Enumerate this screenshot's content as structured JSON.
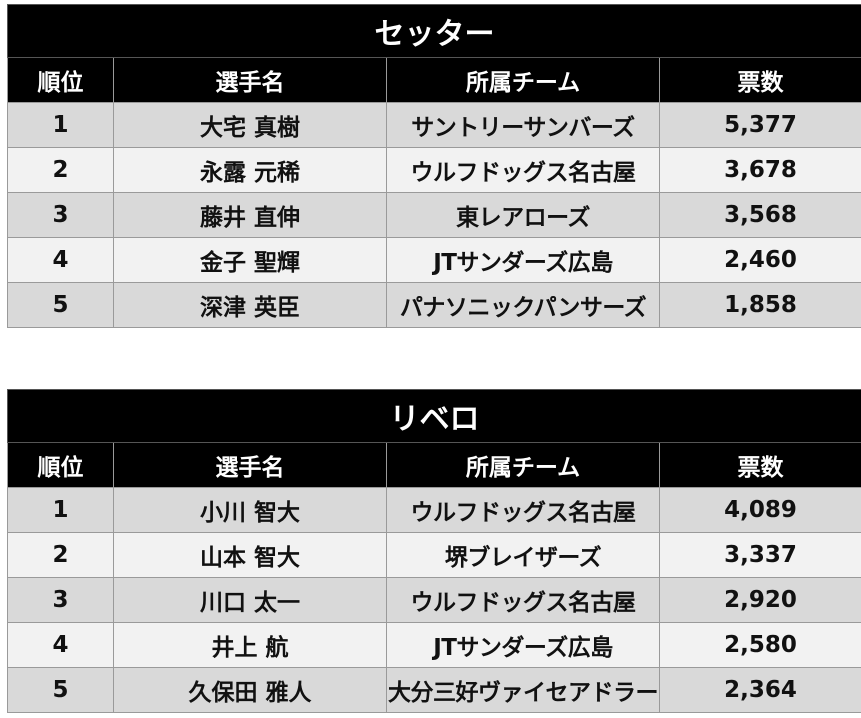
{
  "tables": [
    {
      "title": "セッター",
      "headers": {
        "rank": "順位",
        "player": "選手名",
        "team": "所属チーム",
        "votes": "票数"
      },
      "rows": [
        {
          "rank": "1",
          "player": "大宅 真樹",
          "team": "サントリーサンバーズ",
          "votes": "5,377"
        },
        {
          "rank": "2",
          "player": "永露 元稀",
          "team": "ウルフドッグス名古屋",
          "votes": "3,678"
        },
        {
          "rank": "3",
          "player": "藤井 直伸",
          "team": "東レアローズ",
          "votes": "3,568"
        },
        {
          "rank": "4",
          "player": "金子 聖輝",
          "team": "JTサンダーズ広島",
          "votes": "2,460"
        },
        {
          "rank": "5",
          "player": "深津 英臣",
          "team": "パナソニックパンサーズ",
          "votes": "1,858"
        }
      ]
    },
    {
      "title": "リベロ",
      "headers": {
        "rank": "順位",
        "player": "選手名",
        "team": "所属チーム",
        "votes": "票数"
      },
      "rows": [
        {
          "rank": "1",
          "player": "小川 智大",
          "team": "ウルフドッグス名古屋",
          "votes": "4,089"
        },
        {
          "rank": "2",
          "player": "山本 智大",
          "team": "堺ブレイザーズ",
          "votes": "3,337"
        },
        {
          "rank": "3",
          "player": "川口 太一",
          "team": "ウルフドッグス名古屋",
          "votes": "2,920"
        },
        {
          "rank": "4",
          "player": "井上 航",
          "team": "JTサンダーズ広島",
          "votes": "2,580"
        },
        {
          "rank": "5",
          "player": "久保田 雅人",
          "team": "大分三好ヴァイセアドラー",
          "votes": "2,364"
        }
      ]
    }
  ]
}
